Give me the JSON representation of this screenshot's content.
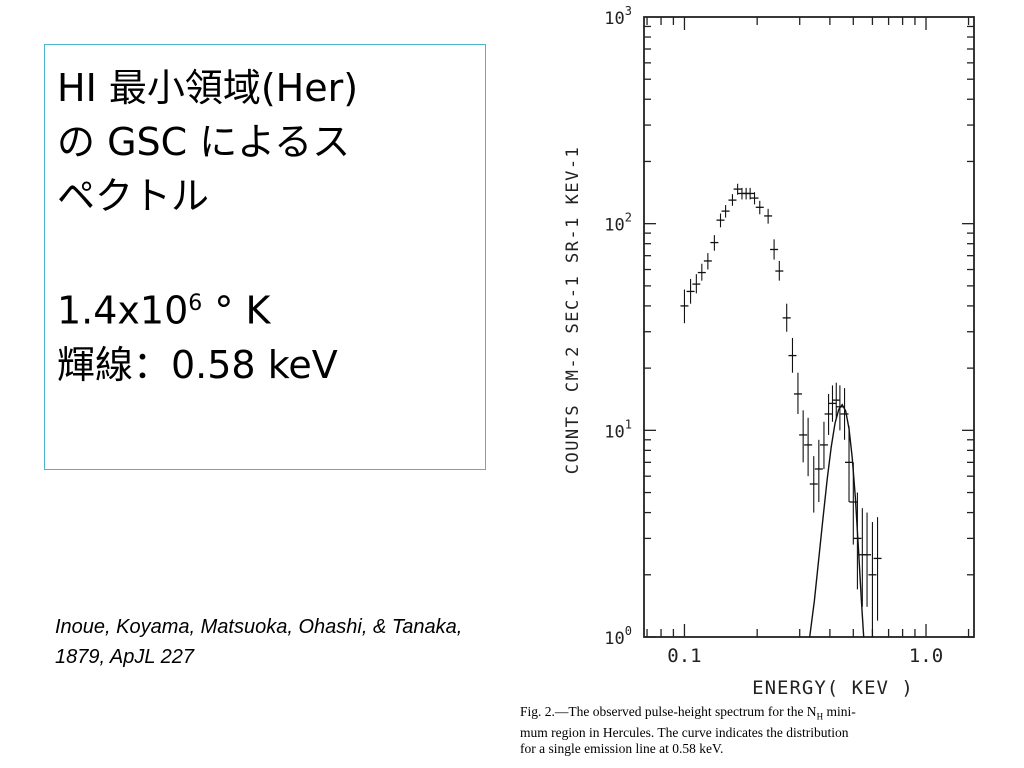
{
  "slide": {
    "title_lines": [
      "HI 最小領域(Her)",
      "の GSC によるス",
      "ペクトル"
    ],
    "temperature": {
      "value": "1.4x10",
      "exponent": "6",
      "unit": " °  K"
    },
    "line_label": "輝線：0.58 keV",
    "citation": "Inoue, Koyama,  Matsuoka, Ohashi, & Tanaka, 1879, ApJL 227",
    "caption_lines": [
      "Fig. 2.—The observed pulse-height spectrum for the N",
      "mum region in Hercules. The curve indicates the distribution",
      "for a single emission line at 0.58 keV."
    ],
    "caption_sub": "H",
    "caption_tail": " mini-"
  },
  "chart_data": {
    "type": "scatter",
    "title": "",
    "xlabel": "ENERGY( KEV )",
    "ylabel": "COUNTS  CM-2  SEC-1  SR-1  KEV-1",
    "xscale": "log",
    "yscale": "log",
    "xlim": [
      0.068,
      1.58
    ],
    "ylim": [
      1,
      1000
    ],
    "x_tick_labels": [
      "0.1",
      "1.0"
    ],
    "y_tick_labels": [
      {
        "base": "10",
        "exp": "0"
      },
      {
        "base": "10",
        "exp": "1"
      },
      {
        "base": "10",
        "exp": "2"
      },
      {
        "base": "10",
        "exp": "3"
      }
    ],
    "series": [
      {
        "style": "errorbars",
        "points": [
          {
            "x": 0.1,
            "y": 40,
            "ylo": 33,
            "yhi": 48
          },
          {
            "x": 0.106,
            "y": 47,
            "ylo": 41,
            "yhi": 54
          },
          {
            "x": 0.112,
            "y": 51,
            "ylo": 46,
            "yhi": 57
          },
          {
            "x": 0.118,
            "y": 58,
            "ylo": 53,
            "yhi": 64
          },
          {
            "x": 0.125,
            "y": 66,
            "ylo": 60,
            "yhi": 72
          },
          {
            "x": 0.133,
            "y": 81,
            "ylo": 74,
            "yhi": 88
          },
          {
            "x": 0.141,
            "y": 104,
            "ylo": 96,
            "yhi": 112
          },
          {
            "x": 0.148,
            "y": 115,
            "ylo": 107,
            "yhi": 123
          },
          {
            "x": 0.158,
            "y": 130,
            "ylo": 122,
            "yhi": 139
          },
          {
            "x": 0.166,
            "y": 147,
            "ylo": 138,
            "yhi": 156
          },
          {
            "x": 0.173,
            "y": 140,
            "ylo": 131,
            "yhi": 149
          },
          {
            "x": 0.18,
            "y": 140,
            "ylo": 131,
            "yhi": 149
          },
          {
            "x": 0.187,
            "y": 140,
            "ylo": 131,
            "yhi": 149
          },
          {
            "x": 0.195,
            "y": 133,
            "ylo": 124,
            "yhi": 142
          },
          {
            "x": 0.205,
            "y": 120,
            "ylo": 111,
            "yhi": 129
          },
          {
            "x": 0.222,
            "y": 109,
            "ylo": 100,
            "yhi": 118
          },
          {
            "x": 0.235,
            "y": 75,
            "ylo": 67,
            "yhi": 84
          },
          {
            "x": 0.247,
            "y": 59,
            "ylo": 53,
            "yhi": 66
          },
          {
            "x": 0.265,
            "y": 35,
            "ylo": 30,
            "yhi": 41
          },
          {
            "x": 0.28,
            "y": 23,
            "ylo": 19,
            "yhi": 28
          },
          {
            "x": 0.295,
            "y": 15,
            "ylo": 12,
            "yhi": 19
          },
          {
            "x": 0.31,
            "y": 9.5,
            "ylo": 7,
            "yhi": 12.5
          },
          {
            "x": 0.325,
            "y": 8.5,
            "ylo": 6,
            "yhi": 11.5
          },
          {
            "x": 0.343,
            "y": 5.5,
            "ylo": 4,
            "yhi": 7.5
          },
          {
            "x": 0.36,
            "y": 6.5,
            "ylo": 4.5,
            "yhi": 9
          },
          {
            "x": 0.378,
            "y": 8.5,
            "ylo": 6.5,
            "yhi": 11
          },
          {
            "x": 0.395,
            "y": 12,
            "ylo": 9.5,
            "yhi": 15
          },
          {
            "x": 0.41,
            "y": 13.5,
            "ylo": 11,
            "yhi": 16.5
          },
          {
            "x": 0.425,
            "y": 14,
            "ylo": 11.5,
            "yhi": 17
          },
          {
            "x": 0.44,
            "y": 13,
            "ylo": 10,
            "yhi": 16.5
          },
          {
            "x": 0.46,
            "y": 12,
            "ylo": 9,
            "yhi": 16
          },
          {
            "x": 0.48,
            "y": 7,
            "ylo": 4.5,
            "yhi": 10.5
          },
          {
            "x": 0.5,
            "y": 4.5,
            "ylo": 2.8,
            "yhi": 7
          },
          {
            "x": 0.52,
            "y": 3,
            "ylo": 1.7,
            "yhi": 5
          },
          {
            "x": 0.545,
            "y": 2.5,
            "ylo": 1.4,
            "yhi": 4.2
          },
          {
            "x": 0.57,
            "y": 2.5,
            "ylo": 1.4,
            "yhi": 4
          },
          {
            "x": 0.6,
            "y": 2.0,
            "ylo": 1.0,
            "yhi": 3.6
          },
          {
            "x": 0.63,
            "y": 2.4,
            "ylo": 1.2,
            "yhi": 3.8
          }
        ]
      },
      {
        "style": "curve",
        "points": [
          {
            "x": 0.33,
            "y": 1.0
          },
          {
            "x": 0.345,
            "y": 1.5
          },
          {
            "x": 0.36,
            "y": 2.4
          },
          {
            "x": 0.375,
            "y": 3.8
          },
          {
            "x": 0.39,
            "y": 5.8
          },
          {
            "x": 0.405,
            "y": 8.3
          },
          {
            "x": 0.42,
            "y": 10.8
          },
          {
            "x": 0.435,
            "y": 12.6
          },
          {
            "x": 0.45,
            "y": 13.3
          },
          {
            "x": 0.465,
            "y": 12.4
          },
          {
            "x": 0.48,
            "y": 10.2
          },
          {
            "x": 0.495,
            "y": 7.4
          },
          {
            "x": 0.51,
            "y": 4.7
          },
          {
            "x": 0.525,
            "y": 2.7
          },
          {
            "x": 0.54,
            "y": 1.5
          },
          {
            "x": 0.552,
            "y": 1.0
          }
        ]
      }
    ]
  }
}
